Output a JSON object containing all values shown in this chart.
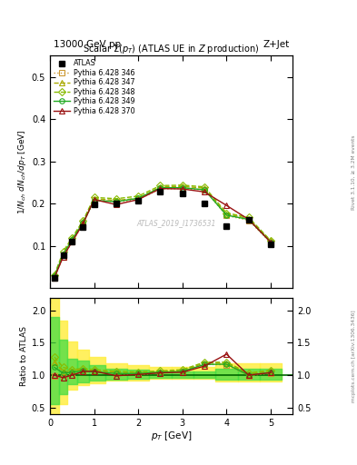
{
  "title_top_left": "13000 GeV pp",
  "title_top_right": "Z+Jet",
  "plot_title": "Scalar Σ(p_T) (ATLAS UE in Z production)",
  "ylabel_main": "1/N_{ch} dN_{ch}/dp_T [GeV]",
  "ylabel_ratio": "Ratio to ATLAS",
  "xlabel": "p_T [GeV]",
  "watermark": "ATLAS_2019_I1736531",
  "right_label1": "Rivet 3.1.10, ≥ 3.2M events",
  "right_label2": "mcplots.cern.ch [arXiv:1306.3436]",
  "atlas_x": [
    0.1,
    0.3,
    0.5,
    0.75,
    1.0,
    1.5,
    2.0,
    2.5,
    3.0,
    3.5,
    4.0,
    4.5,
    5.0
  ],
  "atlas_y": [
    0.025,
    0.078,
    0.11,
    0.145,
    0.198,
    0.2,
    0.208,
    0.228,
    0.225,
    0.2,
    0.148,
    0.163,
    0.105
  ],
  "p346_x": [
    0.1,
    0.3,
    0.5,
    0.75,
    1.0,
    1.5,
    2.0,
    2.5,
    3.0,
    3.5,
    4.0,
    4.5,
    5.0
  ],
  "p346_y": [
    0.025,
    0.075,
    0.11,
    0.152,
    0.21,
    0.204,
    0.21,
    0.235,
    0.236,
    0.233,
    0.172,
    0.161,
    0.108
  ],
  "p347_x": [
    0.1,
    0.3,
    0.5,
    0.75,
    1.0,
    1.5,
    2.0,
    2.5,
    3.0,
    3.5,
    4.0,
    4.5,
    5.0
  ],
  "p347_y": [
    0.03,
    0.082,
    0.117,
    0.158,
    0.212,
    0.208,
    0.213,
    0.24,
    0.241,
    0.237,
    0.176,
    0.165,
    0.112
  ],
  "p348_x": [
    0.1,
    0.3,
    0.5,
    0.75,
    1.0,
    1.5,
    2.0,
    2.5,
    3.0,
    3.5,
    4.0,
    4.5,
    5.0
  ],
  "p348_y": [
    0.032,
    0.087,
    0.12,
    0.16,
    0.215,
    0.212,
    0.218,
    0.243,
    0.244,
    0.24,
    0.178,
    0.168,
    0.113
  ],
  "p349_x": [
    0.1,
    0.3,
    0.5,
    0.75,
    1.0,
    1.5,
    2.0,
    2.5,
    3.0,
    3.5,
    4.0,
    4.5,
    5.0
  ],
  "p349_y": [
    0.028,
    0.08,
    0.115,
    0.155,
    0.208,
    0.205,
    0.213,
    0.238,
    0.238,
    0.233,
    0.173,
    0.163,
    0.109
  ],
  "p370_x": [
    0.1,
    0.3,
    0.5,
    0.75,
    1.0,
    1.5,
    2.0,
    2.5,
    3.0,
    3.5,
    4.0,
    4.5,
    5.0
  ],
  "p370_y": [
    0.025,
    0.075,
    0.11,
    0.153,
    0.21,
    0.198,
    0.21,
    0.236,
    0.235,
    0.228,
    0.196,
    0.163,
    0.109
  ],
  "ratio_346": [
    0.98,
    0.96,
    1.0,
    1.05,
    1.06,
    1.02,
    1.01,
    1.03,
    1.05,
    1.165,
    1.16,
    0.99,
    1.03
  ],
  "ratio_347": [
    1.2,
    1.05,
    1.06,
    1.09,
    1.07,
    1.04,
    1.024,
    1.053,
    1.071,
    1.185,
    1.19,
    1.013,
    1.067
  ],
  "ratio_348": [
    1.28,
    1.12,
    1.09,
    1.1,
    1.086,
    1.06,
    1.048,
    1.066,
    1.084,
    1.2,
    1.2,
    1.031,
    1.076
  ],
  "ratio_349": [
    1.12,
    1.03,
    1.045,
    1.069,
    1.051,
    1.025,
    1.024,
    1.044,
    1.058,
    1.165,
    1.169,
    1.0,
    1.038
  ],
  "ratio_370": [
    1.0,
    0.96,
    1.0,
    1.055,
    1.061,
    0.99,
    1.01,
    1.035,
    1.044,
    1.14,
    1.324,
    1.0,
    1.038
  ],
  "band_x_edges": [
    0.0,
    0.2,
    0.4,
    0.625,
    0.875,
    1.25,
    1.75,
    2.25,
    2.75,
    3.25,
    3.75,
    4.25,
    4.75,
    5.25
  ],
  "band_yellow_lo": [
    0.4,
    0.55,
    0.78,
    0.84,
    0.88,
    0.91,
    0.92,
    0.94,
    0.94,
    0.94,
    0.9,
    0.9,
    0.9
  ],
  "band_yellow_hi": [
    2.2,
    1.85,
    1.52,
    1.4,
    1.28,
    1.18,
    1.15,
    1.13,
    1.13,
    1.13,
    1.18,
    1.18,
    1.18
  ],
  "band_green_lo": [
    0.55,
    0.7,
    0.86,
    0.89,
    0.91,
    0.93,
    0.94,
    0.96,
    0.96,
    0.96,
    0.93,
    0.93,
    0.93
  ],
  "band_green_hi": [
    1.9,
    1.55,
    1.26,
    1.22,
    1.16,
    1.1,
    1.08,
    1.06,
    1.06,
    1.06,
    1.1,
    1.1,
    1.1
  ],
  "color_346": "#cc9933",
  "color_347": "#aaaa00",
  "color_348": "#88bb00",
  "color_349": "#22aa22",
  "color_370": "#991111",
  "xlim": [
    0,
    5.5
  ],
  "ylim_main": [
    0.0,
    0.55
  ],
  "ylim_ratio": [
    0.4,
    2.2
  ],
  "main_yticks": [
    0.1,
    0.2,
    0.3,
    0.4,
    0.5
  ],
  "ratio_yticks": [
    0.5,
    1.0,
    1.5,
    2.0
  ],
  "xticks": [
    0,
    1,
    2,
    3,
    4,
    5
  ]
}
